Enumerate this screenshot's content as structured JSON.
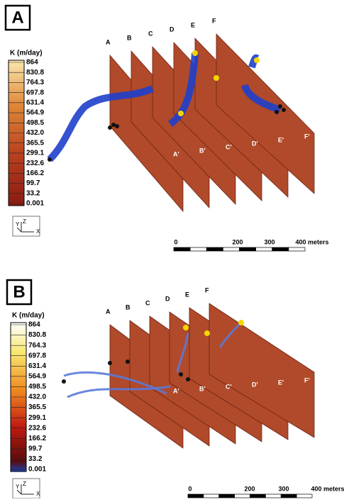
{
  "panels": [
    {
      "label": "A",
      "colorbar": {
        "title": "K (m/day)",
        "ticks": [
          "864",
          "830.8",
          "764.3",
          "697.8",
          "631.4",
          "564.9",
          "498.5",
          "432.0",
          "365.5",
          "299.1",
          "232.6",
          "166.2",
          "99.7",
          "33.2",
          "0.001"
        ]
      },
      "sections": [
        "A",
        "B",
        "C",
        "D",
        "E",
        "F"
      ],
      "sections_prime": [
        "A'",
        "B'",
        "C'",
        "D'",
        "E'",
        "F'"
      ],
      "triad": [
        "Y",
        "Z",
        "X"
      ],
      "scale": [
        "0",
        "200",
        "300",
        "400 meters"
      ]
    },
    {
      "label": "B",
      "colorbar": {
        "title": "K (m/day)",
        "ticks": [
          "864",
          "830.8",
          "764.3",
          "697.8",
          "631.4",
          "564.9",
          "498.5",
          "432.0",
          "365.5",
          "299.1",
          "232.6",
          "166.2",
          "99.7",
          "33.2",
          "0.001"
        ]
      },
      "sections": [
        "A",
        "B",
        "C",
        "D",
        "E",
        "F"
      ],
      "sections_prime": [
        "A'",
        "B'",
        "C'",
        "D'",
        "E'",
        "F'"
      ],
      "triad": [
        "Y",
        "Z",
        "X"
      ],
      "scale": [
        "0",
        "200",
        "300",
        "400 meters"
      ]
    }
  ]
}
